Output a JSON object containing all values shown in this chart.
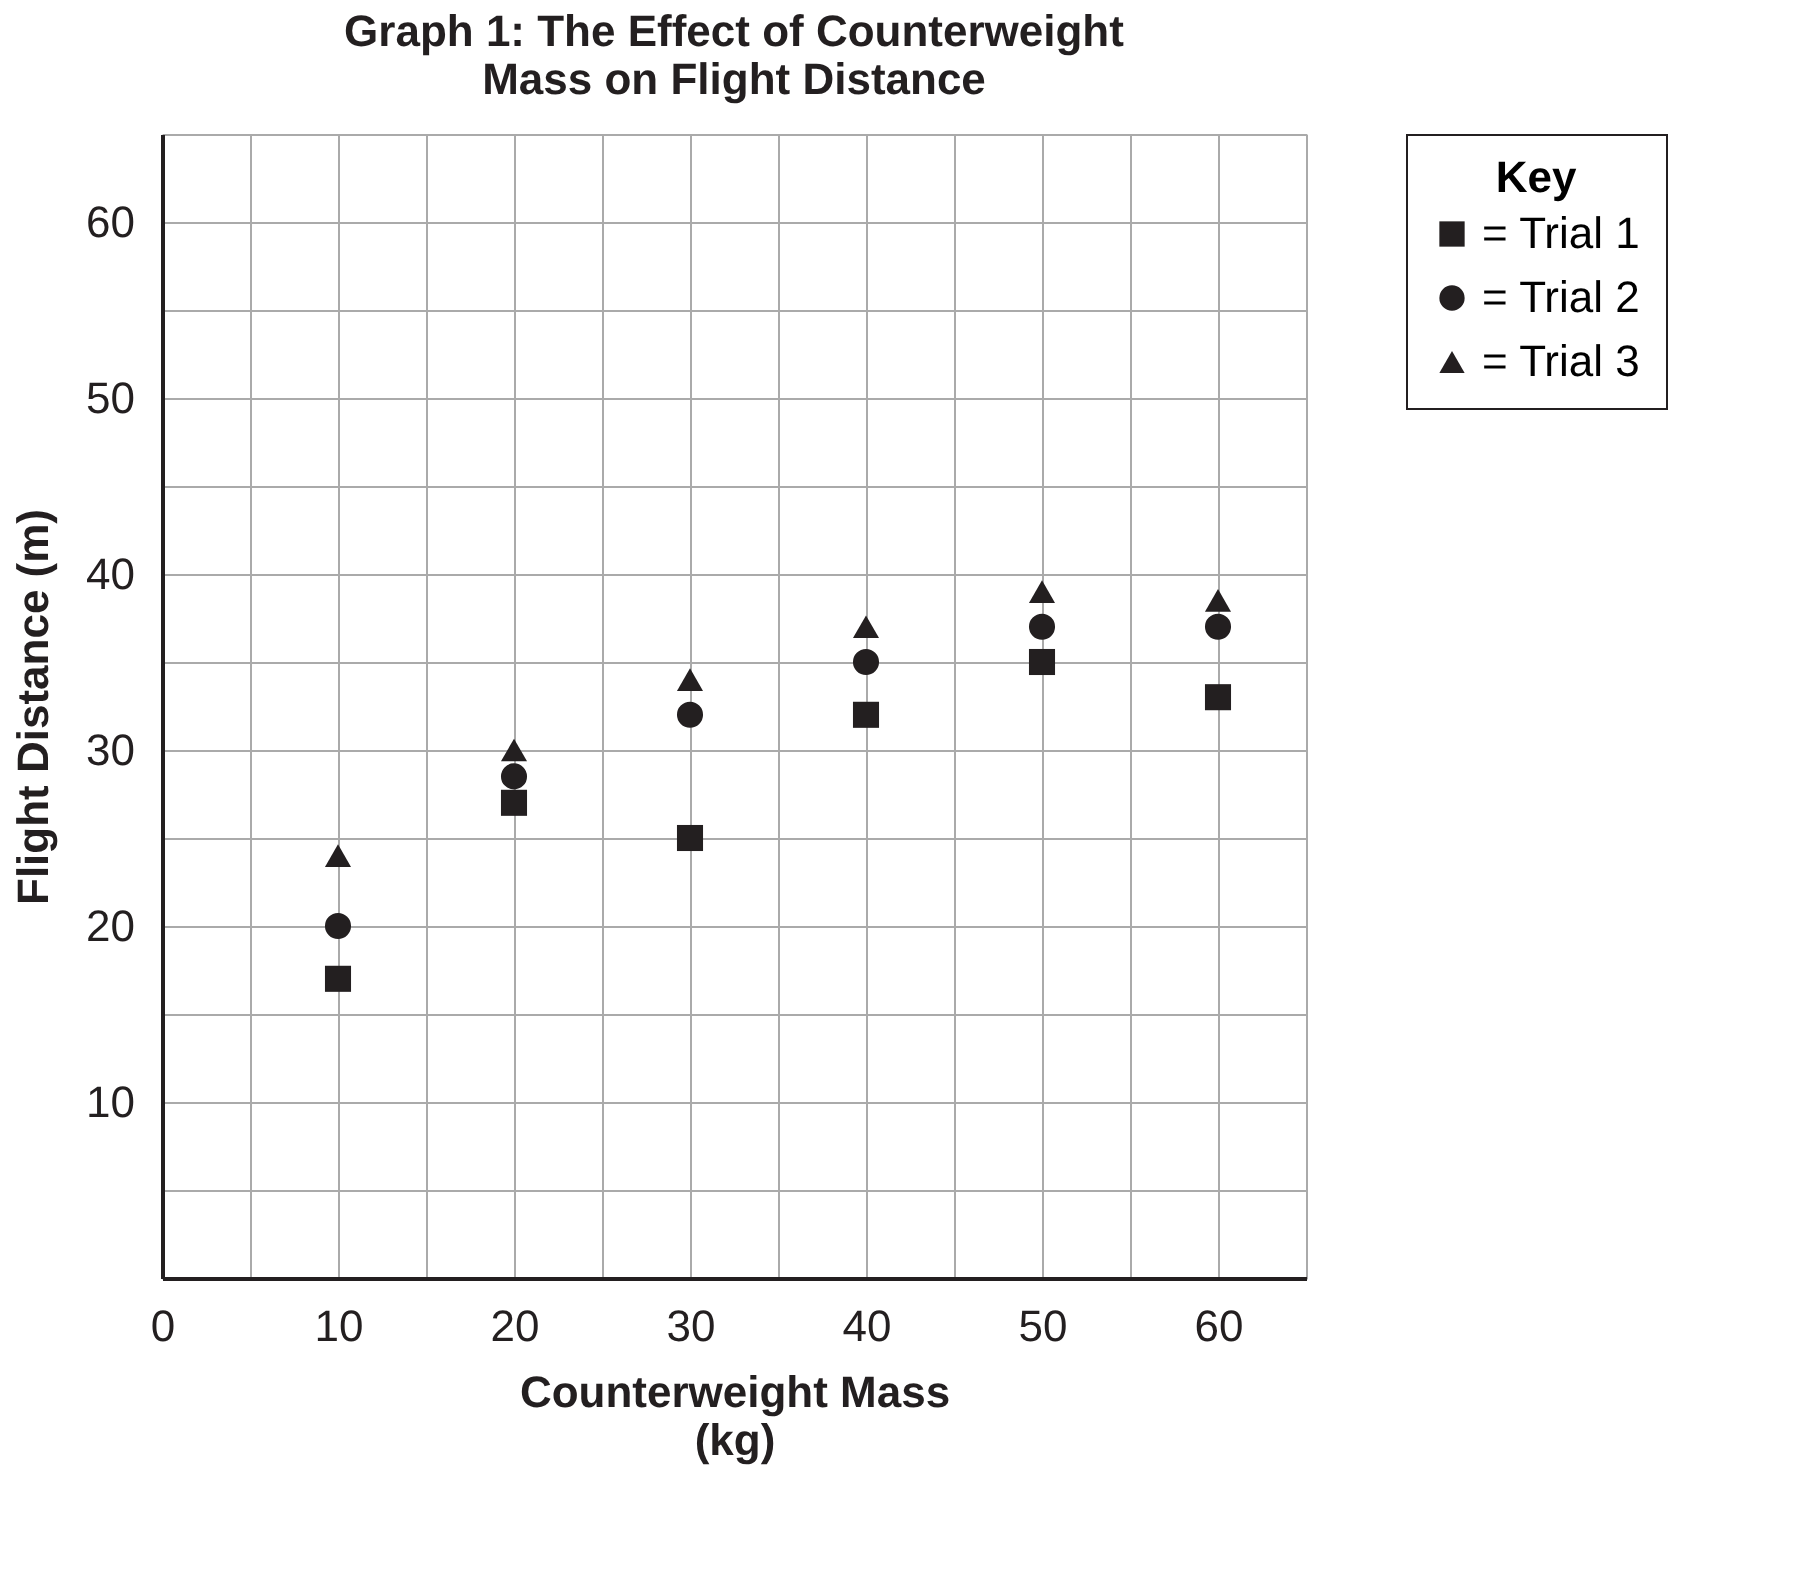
{
  "chart_data": {
    "type": "scatter",
    "title": "Graph 1: The Effect of Counterweight\nMass on Flight Distance",
    "xlabel": "Counterweight Mass\n(kg)",
    "ylabel": "Flight Distance (m)",
    "legend_title": "Key",
    "x": [
      10,
      20,
      30,
      40,
      50,
      60
    ],
    "series": [
      {
        "name": "= Trial 1",
        "color": "#231f20",
        "marker": "square",
        "values": [
          17,
          27,
          25,
          32,
          35,
          33
        ]
      },
      {
        "name": "= Trial 2",
        "color": "#231f20",
        "marker": "circle",
        "values": [
          20,
          28.5,
          32,
          35,
          37,
          37
        ]
      },
      {
        "name": "= Trial 3",
        "color": "#231f20",
        "marker": "triangle",
        "values": [
          24,
          30,
          34,
          37,
          39,
          38.5
        ]
      }
    ],
    "xlim": [
      0,
      65
    ],
    "ylim": [
      0,
      65
    ],
    "xticks": [
      0,
      {
        "value": 5,
        "label": null
      },
      10,
      {
        "value": 15,
        "label": null
      },
      20,
      {
        "value": 25,
        "label": null
      },
      30,
      {
        "value": 35,
        "label": null
      },
      40,
      {
        "value": 45,
        "label": null
      },
      50,
      {
        "value": 55,
        "label": null
      },
      60,
      {
        "value": 65,
        "label": null
      }
    ],
    "yticks": [
      {
        "value": 0,
        "label": null
      },
      {
        "value": 5,
        "label": null
      },
      10,
      {
        "value": 15,
        "label": null
      },
      20,
      {
        "value": 25,
        "label": null
      },
      30,
      {
        "value": 35,
        "label": null
      },
      40,
      {
        "value": 45,
        "label": null
      },
      50,
      {
        "value": 55,
        "label": null
      },
      60,
      {
        "value": 65,
        "label": null
      }
    ],
    "grid": true,
    "legend": "right"
  }
}
